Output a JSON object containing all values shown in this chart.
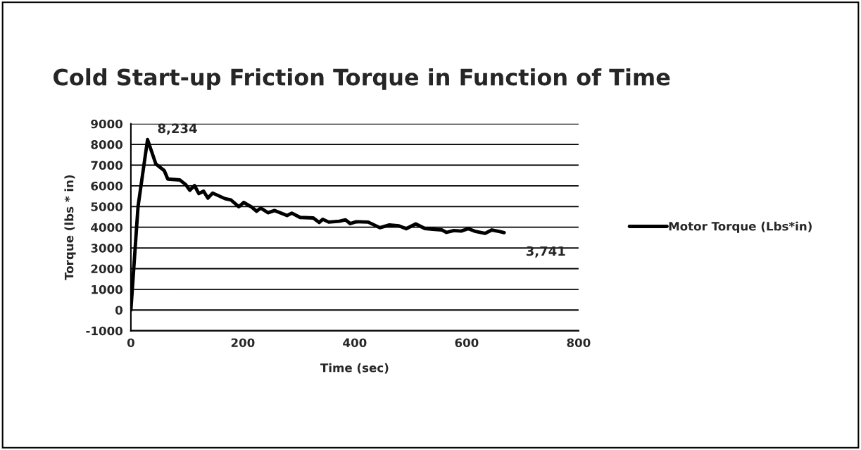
{
  "chart_data": {
    "type": "line",
    "title": "Cold Start-up Friction Torque in Function of Time",
    "xlabel": "Time (sec)",
    "ylabel": "Torque (lbs * in)",
    "xlim": [
      0,
      800
    ],
    "xticks": [
      0,
      200,
      400,
      600,
      800
    ],
    "ylim": [
      -1000,
      9000
    ],
    "yticks": [
      -1000,
      0,
      1000,
      2000,
      3000,
      4000,
      5000,
      6000,
      7000,
      8000,
      9000
    ],
    "grid": "y",
    "legend": "right",
    "marker": "none",
    "line_style": "solid",
    "series": [
      {
        "name": "Motor Torque (Lbs*in)",
        "color": "#000000",
        "x": [
          0,
          12.8,
          29.8,
          44.7,
          59.6,
          66.0,
          87.3,
          98.0,
          105.2,
          113.7,
          121.4,
          129.9,
          137.6,
          146.1,
          168.3,
          178.9,
          193.0,
          201.5,
          216.0,
          224.5,
          232.2,
          244.9,
          256.9,
          279.0,
          287.5,
          302.5,
          325.9,
          336.5,
          342.9,
          353.6,
          372.7,
          383.4,
          391.9,
          402.6,
          424,
          445,
          462,
          479,
          492,
          509,
          526,
          539,
          556,
          564,
          577,
          590,
          603,
          616,
          633,
          645,
          658,
          667
        ],
        "values": [
          0,
          5000,
          8234,
          7054,
          6738,
          6330,
          6285,
          6059,
          5787,
          6014,
          5624,
          5742,
          5407,
          5652,
          5380,
          5317,
          4991,
          5199,
          4973,
          4774,
          4928,
          4701,
          4810,
          4566,
          4683,
          4475,
          4448,
          4231,
          4385,
          4249,
          4294,
          4357,
          4176,
          4267,
          4249,
          3977,
          4113,
          4068,
          3932,
          4158,
          3932,
          3905,
          3869,
          3751,
          3842,
          3814,
          3932,
          3796,
          3706,
          3869,
          3796,
          3741
        ]
      }
    ],
    "annotations": [
      {
        "text": "8,234",
        "x": 29.8,
        "y": 8234
      },
      {
        "text": "3,741",
        "x": 667,
        "y": 3741
      }
    ]
  }
}
